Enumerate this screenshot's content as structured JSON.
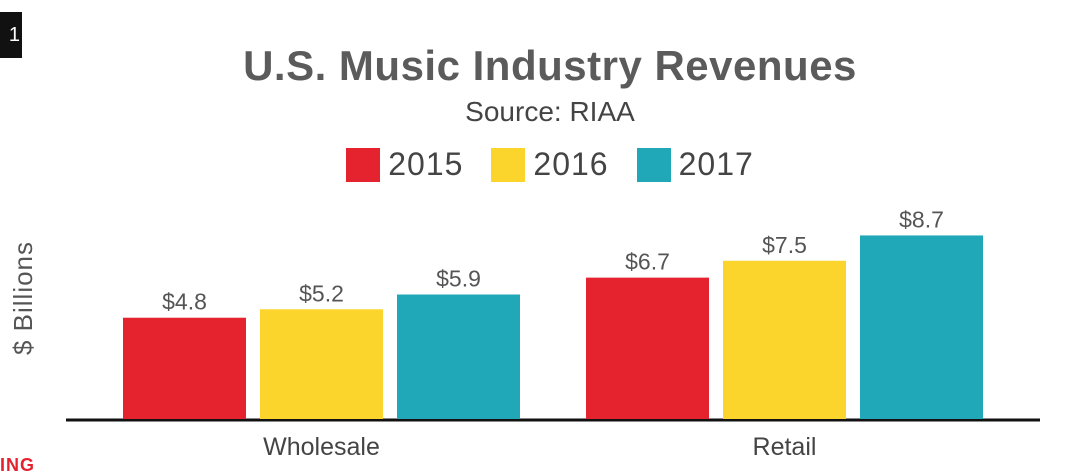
{
  "corner": {
    "badge": "1",
    "tag": "ING"
  },
  "chart_data": {
    "type": "bar",
    "title": "U.S. Music Industry Revenues",
    "subtitle": "Source: RIAA",
    "ylabel": "$ Billions",
    "xlabel": "",
    "categories": [
      "Wholesale",
      "Retail"
    ],
    "series": [
      {
        "name": "2015",
        "color": "#e4232f",
        "values": [
          4.8,
          6.7
        ],
        "labels": [
          "$4.8",
          "$6.7"
        ]
      },
      {
        "name": "2016",
        "color": "#fbd52b",
        "values": [
          5.2,
          7.5
        ],
        "labels": [
          "$5.2",
          "$7.5"
        ]
      },
      {
        "name": "2017",
        "color": "#20a8b8",
        "values": [
          5.9,
          8.7
        ],
        "labels": [
          "$5.9",
          "$8.7"
        ]
      }
    ],
    "ylim": [
      0,
      9
    ],
    "grid": false,
    "legend_position": "top-center"
  }
}
